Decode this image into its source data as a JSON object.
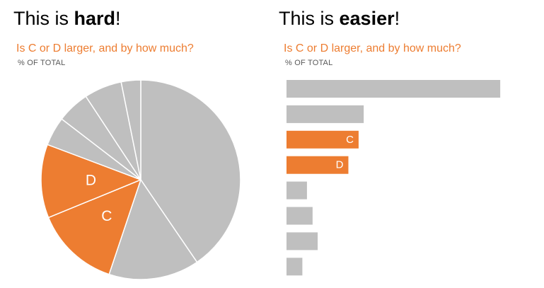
{
  "left_panel": {
    "heading_prefix": "This is ",
    "heading_bold": "hard",
    "heading_suffix": "!",
    "subtitle": "Is C or D larger, and by how much?",
    "units": "% OF TOTAL"
  },
  "right_panel": {
    "heading_prefix": "This is ",
    "heading_bold": "easier",
    "heading_suffix": "!",
    "subtitle": "Is C or D larger, and by how much?",
    "units": "% OF TOTAL"
  },
  "colors": {
    "neutral": "#bfbfbf",
    "highlight": "#ed7d31",
    "slice_border": "#ffffff"
  },
  "chart_data": [
    {
      "type": "pie",
      "title": "Is C or D larger, and by how much?",
      "subtitle": "% OF TOTAL",
      "start": "12 o'clock, clockwise",
      "slices": [
        {
          "label": "",
          "value": 39.7,
          "highlight": false
        },
        {
          "label": "",
          "value": 14.4,
          "highlight": false
        },
        {
          "label": "C",
          "value": 13.4,
          "highlight": true
        },
        {
          "label": "D",
          "value": 11.7,
          "highlight": true
        },
        {
          "label": "",
          "value": 4.6,
          "highlight": false
        },
        {
          "label": "",
          "value": 5.2,
          "highlight": false
        },
        {
          "label": "",
          "value": 6.0,
          "highlight": false
        },
        {
          "label": "",
          "value": 3.1,
          "highlight": false
        }
      ]
    },
    {
      "type": "bar",
      "orientation": "horizontal",
      "title": "Is C or D larger, and by how much?",
      "subtitle": "% OF TOTAL",
      "xlim": [
        0,
        42
      ],
      "bars": [
        {
          "label": "",
          "value": 41.8,
          "highlight": false
        },
        {
          "label": "",
          "value": 15.1,
          "highlight": false
        },
        {
          "label": "C",
          "value": 14.1,
          "highlight": true
        },
        {
          "label": "D",
          "value": 12.1,
          "highlight": true
        },
        {
          "label": "",
          "value": 4.0,
          "highlight": false
        },
        {
          "label": "",
          "value": 5.1,
          "highlight": false
        },
        {
          "label": "",
          "value": 6.1,
          "highlight": false
        },
        {
          "label": "",
          "value": 3.1,
          "highlight": false
        }
      ]
    }
  ]
}
